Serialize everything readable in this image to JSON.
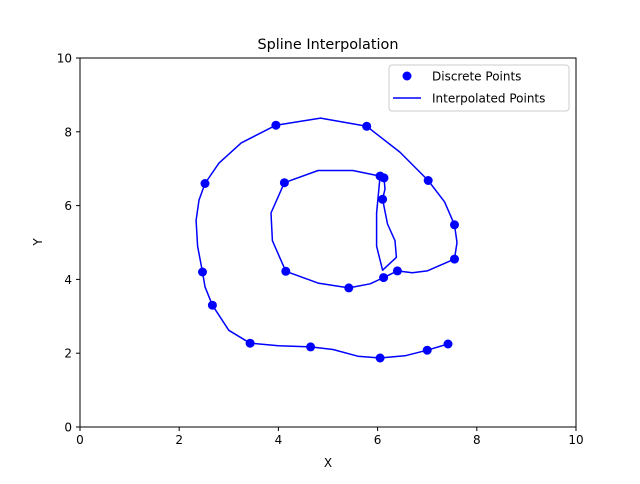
{
  "chart_data": {
    "type": "line",
    "title": "Spline Interpolation",
    "xlabel": "X",
    "ylabel": "Y",
    "xlim": [
      0,
      10
    ],
    "ylim": [
      0,
      10
    ],
    "xticks": [
      "0",
      "2",
      "4",
      "6",
      "8",
      "10"
    ],
    "yticks": [
      "0",
      "2",
      "4",
      "6",
      "8",
      "10"
    ],
    "grid": false,
    "legend_position": "top-right",
    "color": "#0000ff",
    "series": [
      {
        "name": "Discrete Points",
        "kind": "markers",
        "points": [
          [
            7.42,
            2.25
          ],
          [
            7.0,
            2.08
          ],
          [
            6.05,
            1.87
          ],
          [
            4.65,
            2.17
          ],
          [
            3.43,
            2.27
          ],
          [
            2.67,
            3.3
          ],
          [
            2.47,
            4.2
          ],
          [
            2.52,
            6.6
          ],
          [
            3.95,
            8.18
          ],
          [
            5.78,
            8.15
          ],
          [
            7.02,
            6.68
          ],
          [
            7.55,
            5.48
          ],
          [
            7.55,
            4.55
          ],
          [
            6.4,
            4.23
          ],
          [
            6.12,
            4.05
          ],
          [
            5.42,
            3.77
          ],
          [
            4.15,
            4.22
          ],
          [
            4.12,
            6.62
          ],
          [
            6.05,
            6.8
          ],
          [
            6.13,
            6.75
          ],
          [
            6.1,
            6.17
          ]
        ]
      },
      {
        "name": "Interpolated Points",
        "kind": "line",
        "points": [
          [
            7.42,
            2.25
          ],
          [
            7.0,
            2.08
          ],
          [
            6.55,
            1.93
          ],
          [
            6.05,
            1.87
          ],
          [
            5.6,
            1.92
          ],
          [
            5.1,
            2.1
          ],
          [
            4.65,
            2.17
          ],
          [
            4.0,
            2.2
          ],
          [
            3.43,
            2.27
          ],
          [
            3.0,
            2.62
          ],
          [
            2.67,
            3.3
          ],
          [
            2.52,
            3.8
          ],
          [
            2.47,
            4.2
          ],
          [
            2.37,
            4.9
          ],
          [
            2.34,
            5.6
          ],
          [
            2.4,
            6.15
          ],
          [
            2.52,
            6.6
          ],
          [
            2.8,
            7.15
          ],
          [
            3.25,
            7.7
          ],
          [
            3.95,
            8.18
          ],
          [
            4.85,
            8.37
          ],
          [
            5.78,
            8.15
          ],
          [
            6.45,
            7.45
          ],
          [
            7.02,
            6.68
          ],
          [
            7.35,
            6.1
          ],
          [
            7.55,
            5.48
          ],
          [
            7.6,
            5.0
          ],
          [
            7.55,
            4.55
          ],
          [
            7.0,
            4.23
          ],
          [
            6.7,
            4.18
          ],
          [
            6.4,
            4.23
          ],
          [
            6.12,
            4.05
          ],
          [
            5.85,
            3.88
          ],
          [
            5.42,
            3.77
          ],
          [
            4.8,
            3.9
          ],
          [
            4.15,
            4.22
          ],
          [
            3.88,
            5.05
          ],
          [
            3.85,
            5.8
          ],
          [
            4.12,
            6.62
          ],
          [
            4.8,
            6.95
          ],
          [
            5.5,
            6.95
          ],
          [
            6.05,
            6.8
          ],
          [
            6.13,
            6.75
          ],
          [
            6.15,
            6.45
          ],
          [
            6.1,
            6.17
          ],
          [
            6.2,
            5.5
          ],
          [
            6.35,
            5.05
          ],
          [
            6.38,
            4.6
          ],
          [
            6.1,
            4.25
          ],
          [
            5.98,
            4.9
          ],
          [
            5.98,
            5.8
          ],
          [
            6.05,
            6.8
          ]
        ]
      }
    ]
  }
}
